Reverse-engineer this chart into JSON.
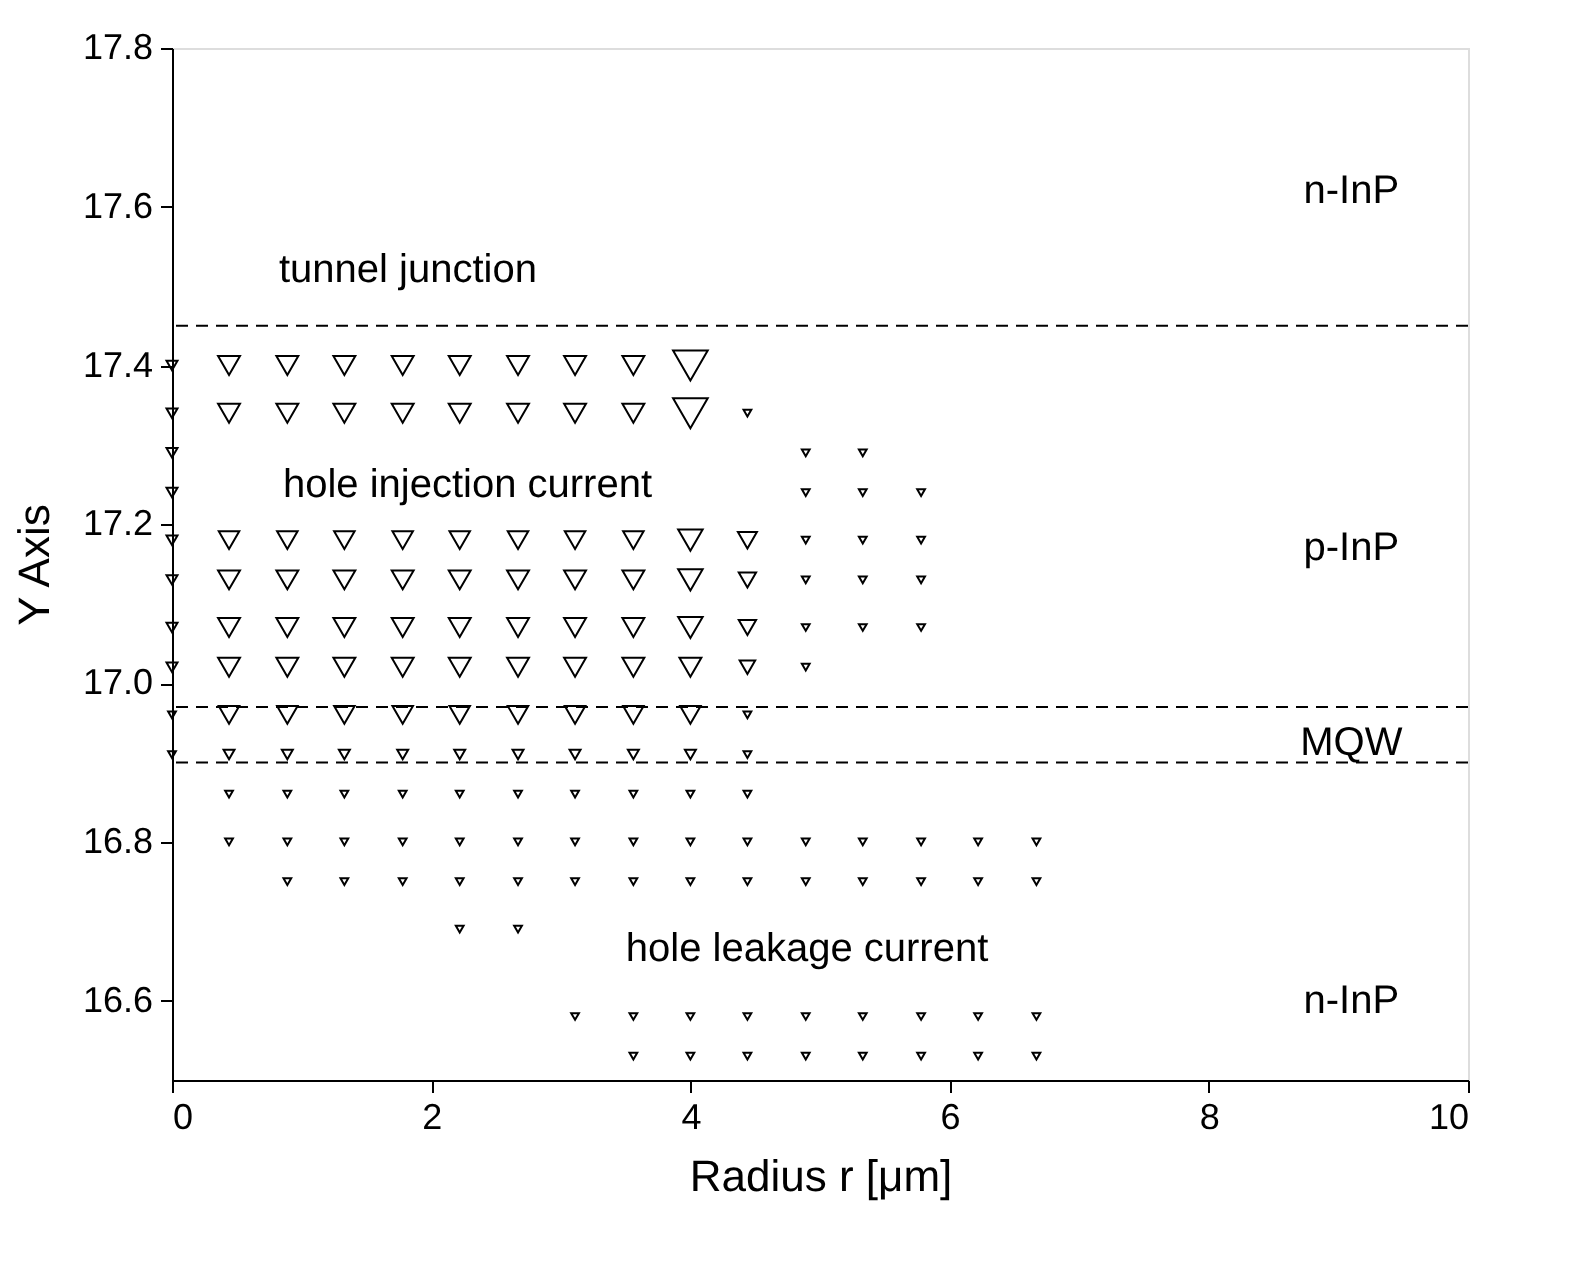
{
  "chart_data": {
    "type": "bubble",
    "xlabel": "Radius r [μm]",
    "ylabel": "Y Axis",
    "xlim": [
      0,
      10
    ],
    "ylim": [
      16.5,
      17.8
    ],
    "xticks": [
      0,
      2,
      4,
      6,
      8,
      10
    ],
    "yticks": [
      16.6,
      16.8,
      {
        "value": 17.0,
        "label": "17.0"
      },
      17.2,
      17.4,
      17.6,
      17.8
    ],
    "marker": "triangle",
    "grid": false,
    "series": [
      {
        "color": "#000000",
        "x": [
          0,
          0.44,
          0.89,
          1.33,
          1.78,
          2.22,
          2.67,
          3.11,
          3.56,
          4.0,
          0,
          0.44,
          0.89,
          1.33,
          1.78,
          2.22,
          2.67,
          3.11,
          3.56,
          4.0,
          4.44,
          0,
          4.89,
          5.33,
          0,
          4.89,
          5.33,
          5.78,
          0,
          0.44,
          0.89,
          1.33,
          1.78,
          2.22,
          2.67,
          3.11,
          3.56,
          4.0,
          4.44,
          4.89,
          5.33,
          5.78,
          0,
          0.44,
          0.89,
          1.33,
          1.78,
          2.22,
          2.67,
          3.11,
          3.56,
          4.0,
          4.44,
          4.89,
          5.33,
          5.78,
          0,
          0.44,
          0.89,
          1.33,
          1.78,
          2.22,
          2.67,
          3.11,
          3.56,
          4.0,
          4.44,
          4.89,
          5.33,
          5.78,
          0,
          0.44,
          0.89,
          1.33,
          1.78,
          2.22,
          2.67,
          3.11,
          3.56,
          4.0,
          4.44,
          4.89,
          0,
          0.44,
          0.89,
          1.33,
          1.78,
          2.22,
          2.67,
          3.11,
          3.56,
          4.0,
          4.44,
          0,
          0.44,
          0.89,
          1.33,
          1.78,
          2.22,
          2.67,
          3.11,
          3.56,
          4.0,
          4.44,
          0.44,
          0.89,
          1.33,
          1.78,
          2.22,
          2.67,
          3.11,
          3.56,
          4.0,
          4.44,
          0.44,
          0.89,
          1.33,
          1.78,
          2.22,
          2.67,
          3.11,
          3.56,
          4.0,
          4.44,
          4.89,
          5.33,
          5.78,
          6.22,
          6.67,
          0.89,
          1.33,
          1.78,
          2.22,
          2.67,
          3.11,
          3.56,
          4.0,
          4.44,
          4.89,
          5.33,
          5.78,
          6.22,
          6.67,
          2.22,
          2.67,
          3.11,
          3.56,
          4.0,
          4.44,
          4.89,
          5.33,
          5.78,
          6.22,
          6.67,
          3.56,
          4.0,
          4.44,
          4.89,
          5.33,
          5.78,
          6.22,
          6.67
        ],
        "values": [
          17.4,
          17.4,
          17.4,
          17.4,
          17.4,
          17.4,
          17.4,
          17.4,
          17.4,
          17.4,
          17.34,
          17.34,
          17.34,
          17.34,
          17.34,
          17.34,
          17.34,
          17.34,
          17.34,
          17.34,
          17.34,
          17.29,
          17.29,
          17.29,
          17.24,
          17.24,
          17.24,
          17.24,
          17.18,
          17.18,
          17.18,
          17.18,
          17.18,
          17.18,
          17.18,
          17.18,
          17.18,
          17.18,
          17.18,
          17.18,
          17.18,
          17.18,
          17.13,
          17.13,
          17.13,
          17.13,
          17.13,
          17.13,
          17.13,
          17.13,
          17.13,
          17.13,
          17.13,
          17.13,
          17.13,
          17.13,
          17.07,
          17.07,
          17.07,
          17.07,
          17.07,
          17.07,
          17.07,
          17.07,
          17.07,
          17.07,
          17.07,
          17.07,
          17.07,
          17.07,
          17.02,
          17.02,
          17.02,
          17.02,
          17.02,
          17.02,
          17.02,
          17.02,
          17.02,
          17.02,
          17.02,
          17.02,
          16.96,
          16.96,
          16.96,
          16.96,
          16.96,
          16.96,
          16.96,
          16.96,
          16.96,
          16.96,
          16.96,
          16.91,
          16.91,
          16.91,
          16.91,
          16.91,
          16.91,
          16.91,
          16.91,
          16.91,
          16.91,
          16.91,
          16.86,
          16.86,
          16.86,
          16.86,
          16.86,
          16.86,
          16.86,
          16.86,
          16.86,
          16.86,
          16.8,
          16.8,
          16.8,
          16.8,
          16.8,
          16.8,
          16.8,
          16.8,
          16.8,
          16.8,
          16.8,
          16.8,
          16.8,
          16.8,
          16.8,
          16.75,
          16.75,
          16.75,
          16.75,
          16.75,
          16.75,
          16.75,
          16.75,
          16.75,
          16.75,
          16.75,
          16.75,
          16.75,
          16.75,
          16.69,
          16.69,
          16.58,
          16.58,
          16.58,
          16.58,
          16.58,
          16.58,
          16.58,
          16.58,
          16.58,
          16.53,
          16.53,
          16.53,
          16.53,
          16.53,
          16.53,
          16.53,
          16.53
        ],
        "sizes": [
          0.1,
          0.4,
          0.4,
          0.4,
          0.4,
          0.4,
          0.4,
          0.4,
          0.4,
          1,
          0.1,
          0.4,
          0.4,
          0.4,
          0.4,
          0.4,
          0.4,
          0.4,
          0.4,
          1,
          0.05,
          0.1,
          0.05,
          0.05,
          0.1,
          0.05,
          0.05,
          0.05,
          0.1,
          0.35,
          0.35,
          0.35,
          0.35,
          0.35,
          0.35,
          0.35,
          0.35,
          0.5,
          0.3,
          0.05,
          0.05,
          0.05,
          0.1,
          0.4,
          0.4,
          0.4,
          0.4,
          0.4,
          0.4,
          0.4,
          0.4,
          0.5,
          0.25,
          0.05,
          0.05,
          0.05,
          0.1,
          0.4,
          0.4,
          0.4,
          0.4,
          0.4,
          0.4,
          0.4,
          0.4,
          0.5,
          0.25,
          0.05,
          0.05,
          0.05,
          0.1,
          0.4,
          0.4,
          0.4,
          0.4,
          0.4,
          0.4,
          0.4,
          0.4,
          0.4,
          0.2,
          0.05,
          0.05,
          0.35,
          0.35,
          0.35,
          0.35,
          0.35,
          0.35,
          0.35,
          0.35,
          0.35,
          0.05,
          0.05,
          0.1,
          0.1,
          0.1,
          0.1,
          0.1,
          0.1,
          0.1,
          0.1,
          0.1,
          0.05,
          0.05,
          0.05,
          0.05,
          0.05,
          0.05,
          0.05,
          0.05,
          0.05,
          0.05,
          0.05,
          0.05,
          0.05,
          0.05,
          0.05,
          0.05,
          0.05,
          0.05,
          0.05,
          0.05,
          0.05,
          0.05,
          0.05,
          0.05,
          0.05,
          0.05,
          0.05,
          0.05,
          0.05,
          0.05,
          0.05,
          0.05,
          0.05,
          0.05,
          0.05,
          0.05,
          0.05,
          0.05,
          0.05,
          0.05,
          0.05,
          0.05,
          0.05,
          0.05,
          0.05,
          0.05,
          0.05,
          0.05,
          0.05,
          0.05,
          0.05,
          0.05,
          0.05,
          0.05,
          0.05,
          0.05,
          0.05,
          0.05,
          0.05
        ]
      }
    ],
    "ref_lines": [
      {
        "axis": "y",
        "value": 17.45,
        "line_style": "dashed",
        "color": "#000000"
      },
      {
        "axis": "y",
        "value": 16.97,
        "line_style": "dashed",
        "color": "#000000"
      },
      {
        "axis": "y",
        "value": 16.9,
        "line_style": "dashed",
        "color": "#000000"
      }
    ],
    "annotations": [
      "tunnel junction",
      "n-InP",
      "hole injection current",
      "p-InP",
      "MQW",
      "hole leakage current",
      "n-InP"
    ]
  }
}
